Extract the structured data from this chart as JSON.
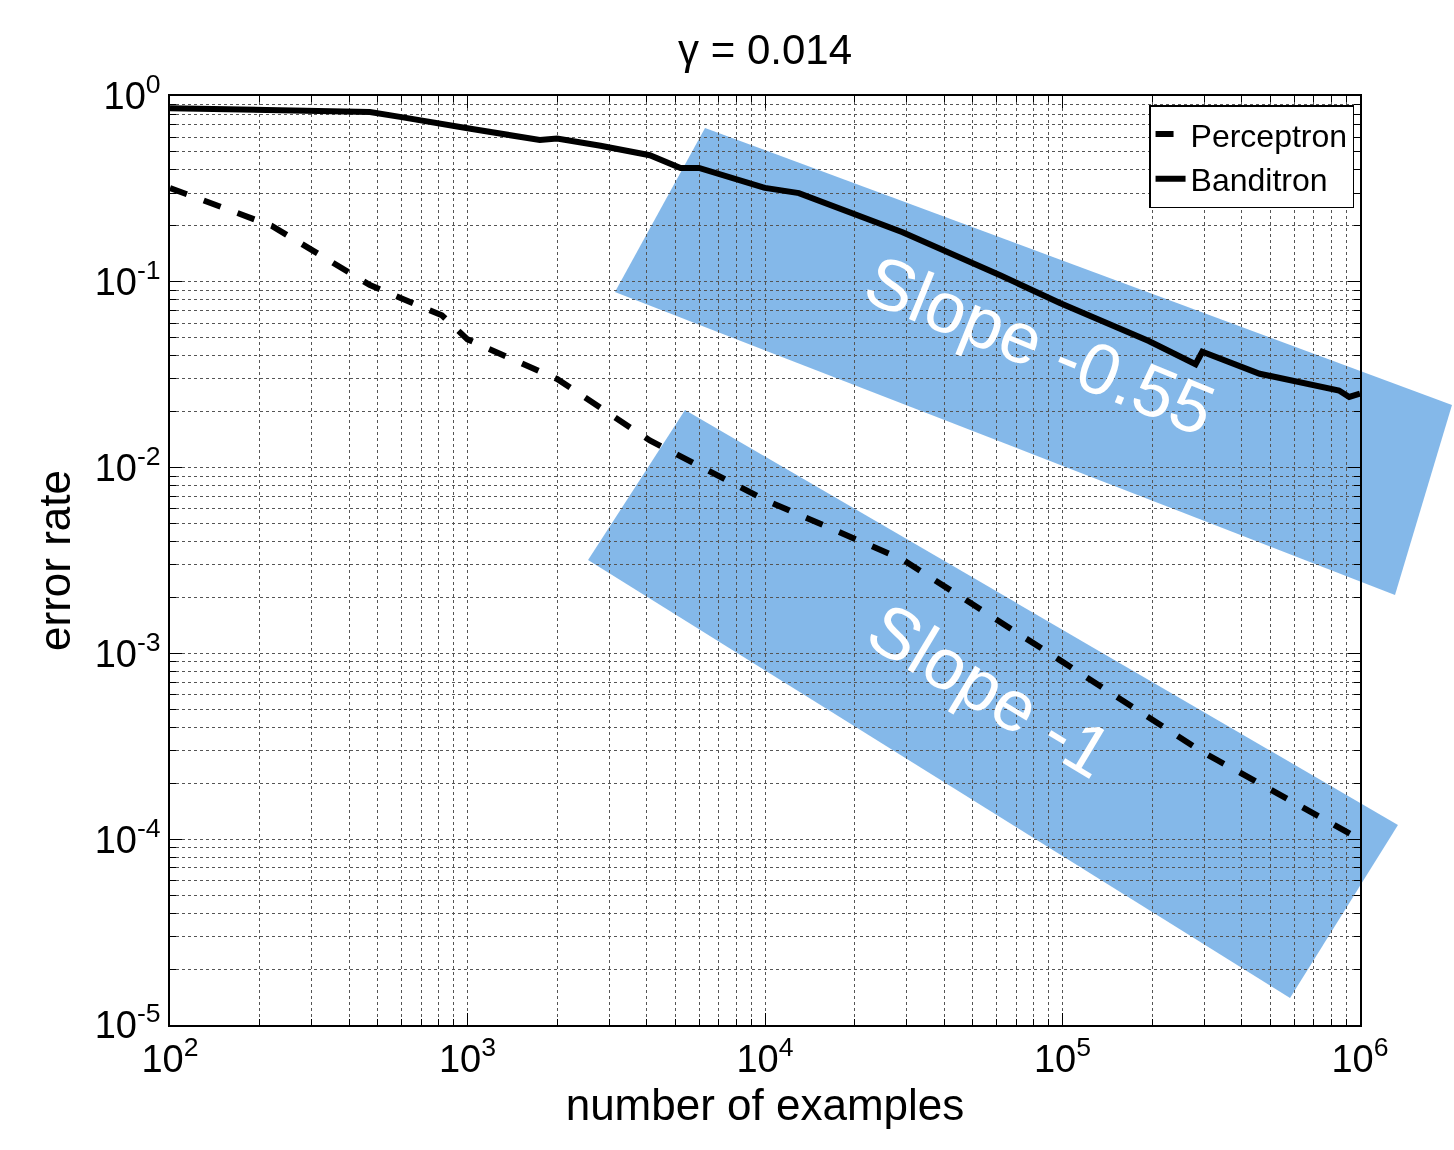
{
  "chart_data": {
    "type": "line",
    "title": "γ = 0.014",
    "xlabel": "number of examples",
    "ylabel": "error rate",
    "log": "xy",
    "grid": true,
    "legend": "top right",
    "marker": "none",
    "xlim": [
      100,
      1000000
    ],
    "xticks": [
      {
        "value": 100,
        "label": "10$^{2}$"
      },
      {
        "value": 1000,
        "label": "10$^{3}$"
      },
      {
        "value": 10000,
        "label": "10$^{4}$"
      },
      {
        "value": 100000,
        "label": "10$^{5}$"
      },
      {
        "value": 1000000,
        "label": "10$^{6}$"
      }
    ],
    "ylim": [
      1e-05,
      1
    ],
    "yticks": [
      {
        "value": 1e-05,
        "label": "10$^{-5}$"
      },
      {
        "value": 0.0001,
        "label": "10$^{-4}$"
      },
      {
        "value": 0.001,
        "label": "10$^{-3}$"
      },
      {
        "value": 0.01,
        "label": "10$^{-2}$"
      },
      {
        "value": 0.1,
        "label": "10$^{-1}$"
      },
      {
        "value": 1,
        "label": "10$^{0}$"
      }
    ],
    "series": [
      {
        "name": "Perceptron",
        "color": "#000000",
        "line_style": "dashed",
        "x": [
          100,
          220,
          470,
          820,
          1000,
          2000,
          4100,
          10000,
          29000,
          98000,
          290000,
          1000000
        ],
        "values": [
          0.32,
          0.2,
          0.096,
          0.066,
          0.049,
          0.03,
          0.014,
          0.0067,
          0.0032,
          0.00092,
          0.0003,
          0.0001
        ]
      },
      {
        "name": "Banditron",
        "color": "#000000",
        "line_style": "solid",
        "x": [
          100,
          470,
          600,
          1000,
          1750,
          2000,
          2800,
          4100,
          5200,
          6000,
          10000,
          13000,
          29000,
          62000,
          98000,
          195000,
          280000,
          295000,
          460000,
          850000,
          920000,
          1000000
        ],
        "values": [
          0.86,
          0.82,
          0.77,
          0.67,
          0.58,
          0.59,
          0.54,
          0.48,
          0.41,
          0.41,
          0.32,
          0.3,
          0.185,
          0.108,
          0.077,
          0.048,
          0.036,
          0.042,
          0.032,
          0.026,
          0.024,
          0.025
        ]
      }
    ],
    "annotations": [
      "Slope -0.55",
      "Slope -1"
    ]
  }
}
